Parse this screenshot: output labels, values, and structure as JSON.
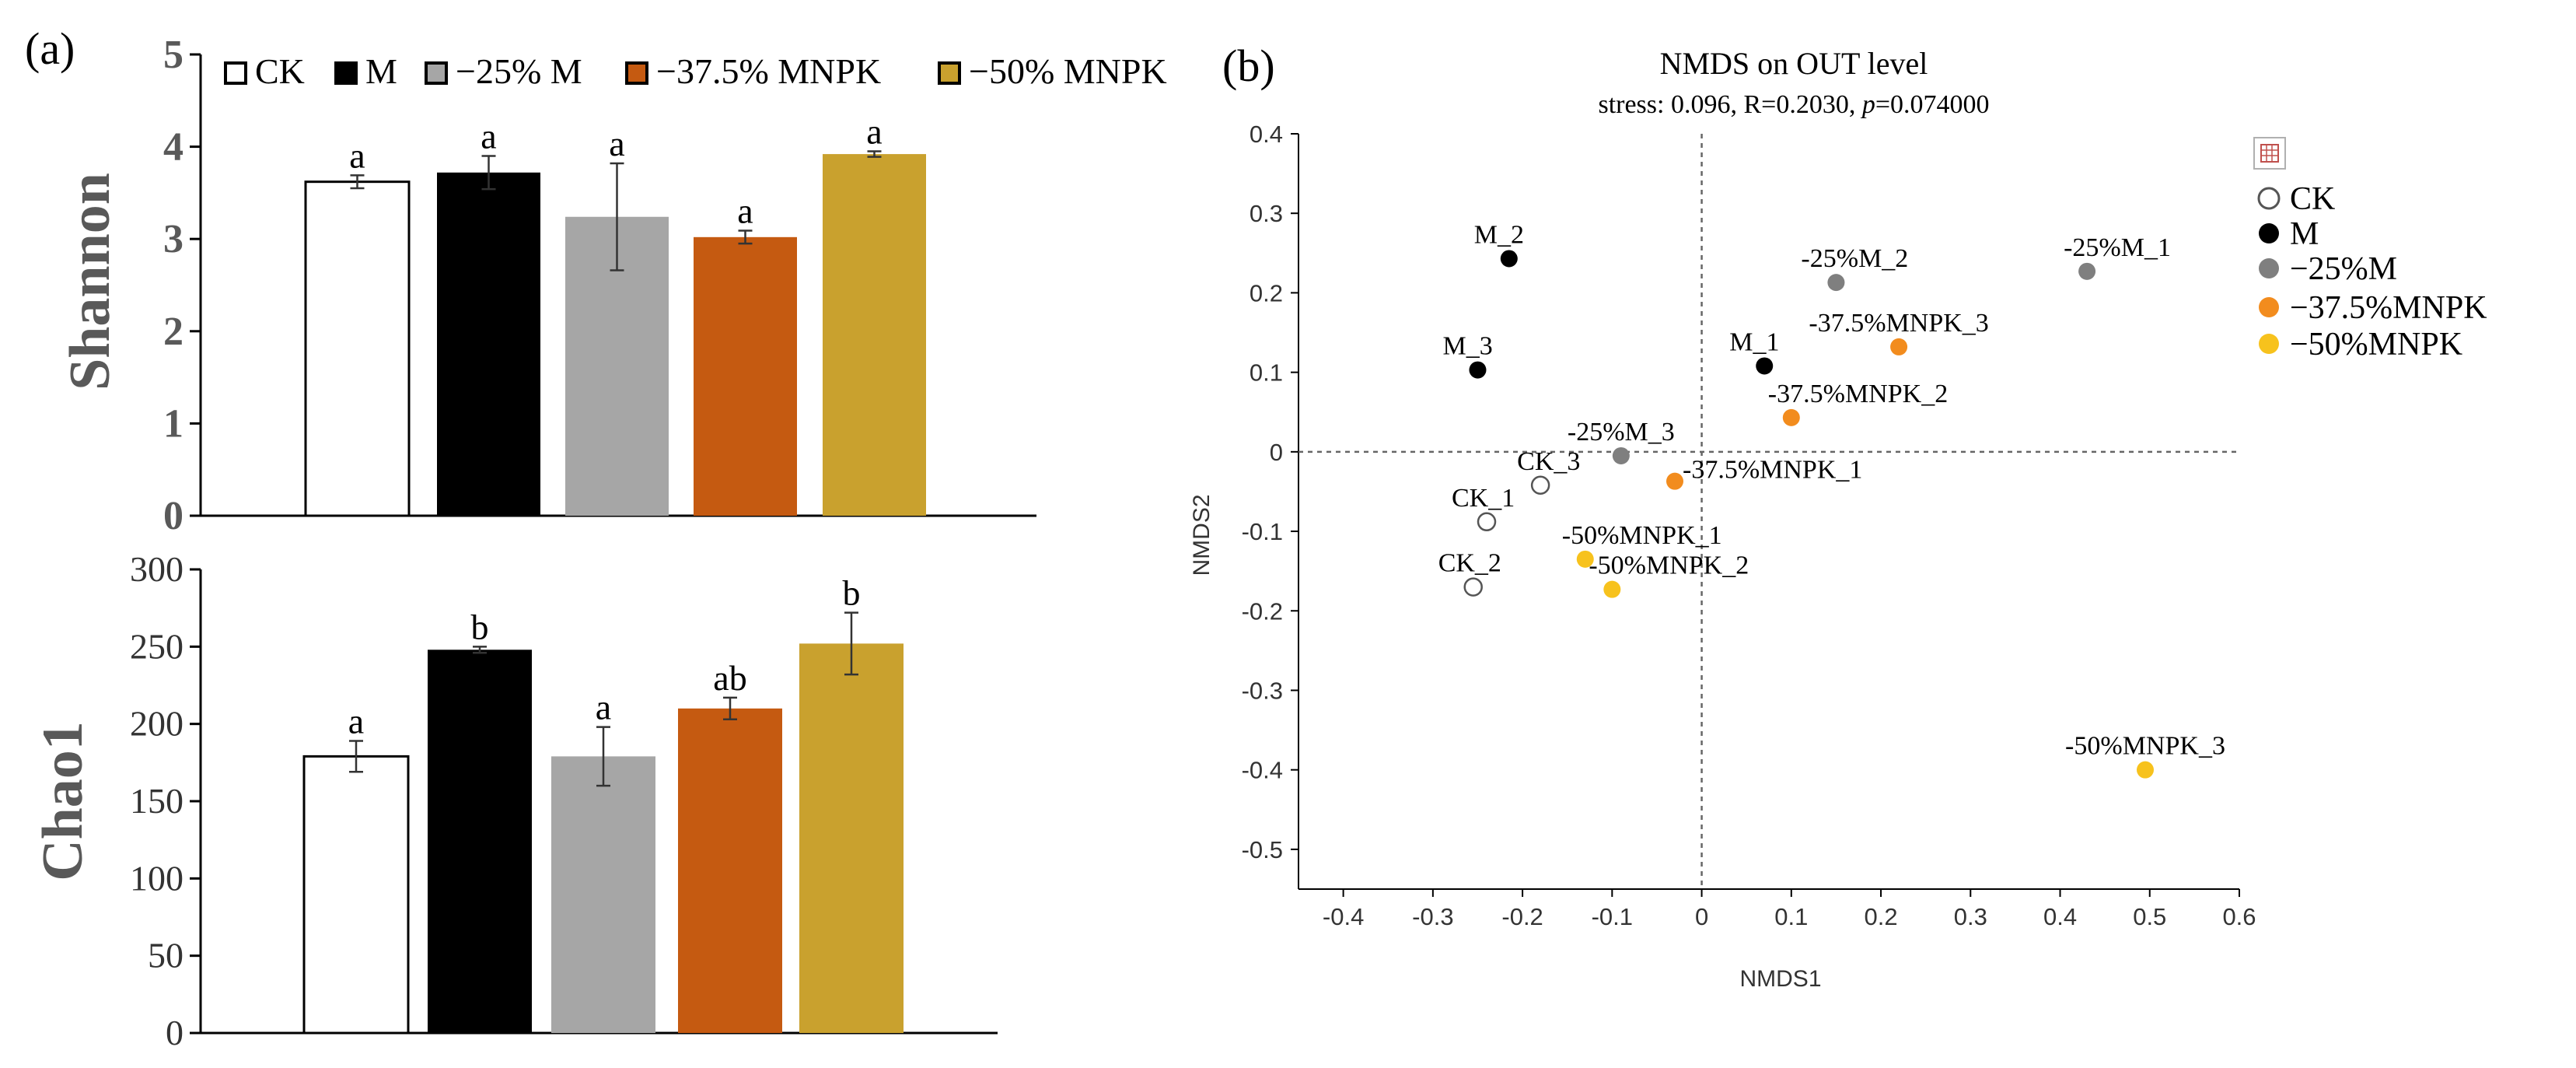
{
  "panel_a_label": "(a)",
  "panel_b_label": "(b)",
  "colors": {
    "CK": "#ffffff",
    "M": "#000000",
    "minus25M": "#a6a6a6",
    "minus375MNPK": "#c55a11",
    "minus50MNPK": "#c9a12e",
    "scatter_CK": "#ffffff",
    "scatter_M": "#000000",
    "scatter_minus25M": "#7f7f7f",
    "scatter_minus375MNPK": "#f28c1e",
    "scatter_minus50MNPK": "#f7c21d",
    "axis": "#000000"
  },
  "legend_a": [
    {
      "key": "CK",
      "label": "CK"
    },
    {
      "key": "M",
      "label": "M"
    },
    {
      "key": "minus25M",
      "label": "−25% M"
    },
    {
      "key": "minus375MNPK",
      "label": "−37.5% MNPK"
    },
    {
      "key": "minus50MNPK",
      "label": "−50% MNPK"
    }
  ],
  "toolbar_icon": "zoom-box-icon",
  "chart_data": [
    {
      "type": "bar",
      "id": "shannon",
      "ylabel": "Shannon",
      "ylim": [
        0,
        5
      ],
      "yticks": [
        0,
        1,
        2,
        3,
        4,
        5
      ],
      "categories": [
        "CK",
        "M",
        "−25% M",
        "−37.5% MNPK",
        "−50% MNPK"
      ],
      "keys": [
        "CK",
        "M",
        "minus25M",
        "minus375MNPK",
        "minus50MNPK"
      ],
      "values": [
        3.62,
        3.72,
        3.24,
        3.02,
        3.92
      ],
      "errors": [
        0.07,
        0.18,
        0.58,
        0.07,
        0.03
      ],
      "labels": [
        "a",
        "a",
        "a",
        "a",
        "a"
      ]
    },
    {
      "type": "bar",
      "id": "chao1",
      "ylabel": "Chao1",
      "ylim": [
        0,
        300
      ],
      "yticks": [
        0,
        50,
        100,
        150,
        200,
        250,
        300
      ],
      "categories": [
        "CK",
        "M",
        "−25% M",
        "−37.5% MNPK",
        "−50% MNPK"
      ],
      "keys": [
        "CK",
        "M",
        "minus25M",
        "minus375MNPK",
        "minus50MNPK"
      ],
      "values": [
        179,
        248,
        179,
        210,
        252
      ],
      "errors": [
        10,
        2,
        19,
        7,
        20
      ],
      "labels": [
        "a",
        "b",
        "a",
        "ab",
        "b"
      ]
    },
    {
      "type": "scatter",
      "id": "nmds",
      "title": "NMDS on OUT level",
      "subtitle_prefix": "stress: 0.096, R=0.2030, ",
      "subtitle_p": "p",
      "subtitle_suffix": "=0.074000",
      "xlabel": "NMDS1",
      "ylabel": "NMDS2",
      "xlim": [
        -0.45,
        0.6
      ],
      "ylim": [
        -0.55,
        0.4
      ],
      "xticks": [
        -0.4,
        -0.3,
        -0.2,
        -0.1,
        0,
        0.1,
        0.2,
        0.3,
        0.4,
        0.5,
        0.6
      ],
      "yticks": [
        0.4,
        0.3,
        0.2,
        0.1,
        0,
        -0.1,
        -0.2,
        -0.3,
        -0.4,
        -0.5
      ],
      "legend": [
        {
          "key": "CK",
          "label": "CK"
        },
        {
          "key": "M",
          "label": "M"
        },
        {
          "key": "minus25M",
          "label": "−25%M"
        },
        {
          "key": "minus375MNPK",
          "label": "−37.5%MNPK"
        },
        {
          "key": "minus50MNPK",
          "label": "−50%MNPK"
        }
      ],
      "points": [
        {
          "label": "M_2",
          "group": "M",
          "x": -0.215,
          "y": 0.243,
          "pos": "tl"
        },
        {
          "label": "M_3",
          "group": "M",
          "x": -0.25,
          "y": 0.103,
          "pos": "tl"
        },
        {
          "label": "M_1",
          "group": "M",
          "x": 0.07,
          "y": 0.108,
          "pos": "tl"
        },
        {
          "label": "-25%M_2",
          "group": "minus25M",
          "x": 0.15,
          "y": 0.213,
          "pos": "tl"
        },
        {
          "label": "-25%M_1",
          "group": "minus25M",
          "x": 0.43,
          "y": 0.227,
          "pos": "tr"
        },
        {
          "label": "-25%M_3",
          "group": "minus25M",
          "x": -0.09,
          "y": -0.005,
          "pos": "tc"
        },
        {
          "label": "-37.5%MNPK_3",
          "group": "minus375MNPK",
          "x": 0.22,
          "y": 0.132,
          "pos": "tc"
        },
        {
          "label": "-37.5%MNPK_2",
          "group": "minus375MNPK",
          "x": 0.1,
          "y": 0.043,
          "pos": "tr"
        },
        {
          "label": "-37.5%MNPK_1",
          "group": "minus375MNPK",
          "x": -0.03,
          "y": -0.037,
          "pos": "r"
        },
        {
          "label": "CK_3",
          "group": "CK",
          "x": -0.18,
          "y": -0.042,
          "pos": "tr"
        },
        {
          "label": "CK_1",
          "group": "CK",
          "x": -0.24,
          "y": -0.088,
          "pos": "tl"
        },
        {
          "label": "CK_2",
          "group": "CK",
          "x": -0.255,
          "y": -0.17,
          "pos": "tl"
        },
        {
          "label": "-50%MNPK_1",
          "group": "minus50MNPK",
          "x": -0.13,
          "y": -0.135,
          "pos": "tr"
        },
        {
          "label": "-50%MNPK_2",
          "group": "minus50MNPK",
          "x": -0.1,
          "y": -0.173,
          "pos": "tr"
        },
        {
          "label": "-50%MNPK_3",
          "group": "minus50MNPK",
          "x": 0.495,
          "y": -0.4,
          "pos": "tc"
        }
      ]
    }
  ]
}
